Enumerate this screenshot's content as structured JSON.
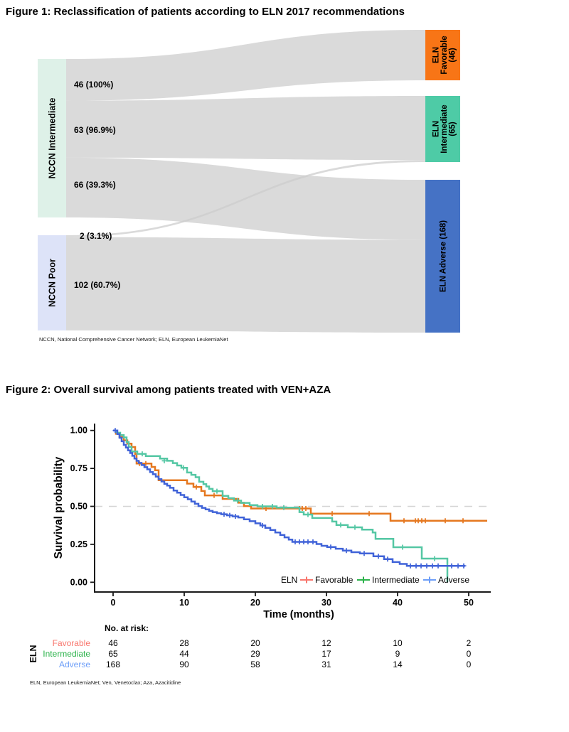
{
  "chart_data": [
    {
      "type": "sankey",
      "title": "Figure 1: Reclassification of patients according to ELN 2017 recommendations",
      "footnote": "NCCN, National Comprehensive Cancer Network; ELN, European LeukemiaNet",
      "flow_color": "#cccccc",
      "left_nodes": [
        {
          "label": "NCCN Intermediate",
          "total": 175,
          "color": "#def1e8"
        },
        {
          "label": "NCCN Poor",
          "total": 104,
          "color": "#dde3f8"
        }
      ],
      "right_nodes": [
        {
          "name": "ELN Favorable",
          "label_lines": [
            "ELN",
            "Favorable",
            "(46)"
          ],
          "total": 46,
          "color": "#f87516"
        },
        {
          "name": "ELN Intermediate",
          "label_lines": [
            "ELN",
            "Intermediate",
            "(65)"
          ],
          "total": 65,
          "color": "#4ecba6"
        },
        {
          "name": "ELN Adverse",
          "label_lines": [
            "ELN Adverse (168)"
          ],
          "total": 168,
          "color": "#4572c5"
        }
      ],
      "flows": [
        {
          "from": "NCCN Intermediate",
          "to": "ELN Favorable",
          "value": 46,
          "label": "46 (100%)"
        },
        {
          "from": "NCCN Intermediate",
          "to": "ELN Intermediate",
          "value": 63,
          "label": "63 (96.9%)"
        },
        {
          "from": "NCCN Intermediate",
          "to": "ELN Adverse",
          "value": 66,
          "label": "66 (39.3%)"
        },
        {
          "from": "NCCN Poor",
          "to": "ELN Intermediate",
          "value": 2,
          "label": "2 (3.1%)"
        },
        {
          "from": "NCCN Poor",
          "to": "ELN Adverse",
          "value": 102,
          "label": "102 (60.7%)"
        }
      ]
    },
    {
      "type": "line",
      "title": "Figure 2: Overall survival among patients treated with VEN+AZA",
      "footnote": "ELN, European LeukemiaNet; Ven, Venetoclax; Aza, Azacitidine",
      "xlabel": "Time (months)",
      "ylabel": "Survival probability",
      "xlim": [
        0,
        53
      ],
      "ylim": [
        0,
        1
      ],
      "x_ticks": [
        0,
        10,
        20,
        30,
        40,
        50
      ],
      "x_tick_labels": [
        "0",
        "10",
        "20",
        "30",
        "40",
        "50"
      ],
      "y_ticks": [
        1.0,
        0.75,
        0.5,
        0.25,
        0.0
      ],
      "y_tick_labels": [
        "1.00",
        "0.75",
        "0.50",
        "0.25",
        "0.00"
      ],
      "reference_line_y": 0.5,
      "reference_line_color": "#d4d4d4",
      "legend_title": "ELN",
      "series": [
        {
          "name": "Favorable",
          "line_color": "#e5771e",
          "legend_color": "#f8766d",
          "steps": [
            [
              0,
              1
            ],
            [
              0.4,
              0.978
            ],
            [
              0.9,
              0.957
            ],
            [
              1.5,
              0.935
            ],
            [
              2.0,
              0.913
            ],
            [
              2.6,
              0.891
            ],
            [
              3.1,
              0.845
            ],
            [
              3.3,
              0.782
            ],
            [
              5.4,
              0.76
            ],
            [
              5.9,
              0.738
            ],
            [
              6.4,
              0.672
            ],
            [
              10.4,
              0.65
            ],
            [
              11.3,
              0.628
            ],
            [
              12.4,
              0.601
            ],
            [
              12.9,
              0.572
            ],
            [
              15.4,
              0.549
            ],
            [
              17.6,
              0.524
            ],
            [
              18.4,
              0.502
            ],
            [
              19.4,
              0.486
            ],
            [
              27.8,
              0.452
            ],
            [
              39.0,
              0.405
            ],
            [
              52.6,
              0.405
            ]
          ],
          "censors": [
            [
              3.7,
              0.782
            ],
            [
              4.6,
              0.782
            ],
            [
              11.7,
              0.628
            ],
            [
              14.2,
              0.572
            ],
            [
              21.5,
              0.486
            ],
            [
              26.2,
              0.486
            ],
            [
              26.6,
              0.486
            ],
            [
              27.1,
              0.486
            ],
            [
              30.8,
              0.452
            ],
            [
              36.0,
              0.452
            ],
            [
              40.9,
              0.405
            ],
            [
              42.5,
              0.405
            ],
            [
              42.9,
              0.405
            ],
            [
              43.4,
              0.405
            ],
            [
              43.9,
              0.405
            ],
            [
              46.7,
              0.405
            ],
            [
              49.2,
              0.405
            ]
          ]
        },
        {
          "name": "Intermediate",
          "line_color": "#55c7a4",
          "legend_color": "#2db34c",
          "steps": [
            [
              0,
              1
            ],
            [
              0.5,
              0.985
            ],
            [
              1.0,
              0.969
            ],
            [
              1.5,
              0.954
            ],
            [
              1.9,
              0.923
            ],
            [
              2.2,
              0.892
            ],
            [
              2.6,
              0.862
            ],
            [
              3.4,
              0.846
            ],
            [
              4.6,
              0.831
            ],
            [
              6.6,
              0.815
            ],
            [
              7.6,
              0.8
            ],
            [
              8.4,
              0.785
            ],
            [
              9.0,
              0.769
            ],
            [
              9.6,
              0.754
            ],
            [
              10.4,
              0.723
            ],
            [
              11.0,
              0.708
            ],
            [
              11.6,
              0.692
            ],
            [
              12.1,
              0.662
            ],
            [
              12.7,
              0.646
            ],
            [
              13.1,
              0.631
            ],
            [
              13.5,
              0.615
            ],
            [
              14.0,
              0.6
            ],
            [
              15.4,
              0.569
            ],
            [
              16.2,
              0.554
            ],
            [
              17.0,
              0.538
            ],
            [
              18.0,
              0.523
            ],
            [
              19.2,
              0.508
            ],
            [
              20.3,
              0.5
            ],
            [
              23.0,
              0.492
            ],
            [
              26.2,
              0.462
            ],
            [
              26.8,
              0.446
            ],
            [
              28.0,
              0.423
            ],
            [
              30.8,
              0.4
            ],
            [
              31.4,
              0.377
            ],
            [
              33.0,
              0.362
            ],
            [
              35.0,
              0.347
            ],
            [
              36.5,
              0.328
            ],
            [
              36.9,
              0.286
            ],
            [
              39.4,
              0.231
            ],
            [
              43.4,
              0.156
            ],
            [
              47.0,
              0.0
            ]
          ],
          "censors": [
            [
              4.1,
              0.846
            ],
            [
              7.2,
              0.8
            ],
            [
              9.9,
              0.754
            ],
            [
              14.6,
              0.6
            ],
            [
              17.5,
              0.538
            ],
            [
              21.0,
              0.5
            ],
            [
              22.4,
              0.5
            ],
            [
              24.0,
              0.492
            ],
            [
              27.4,
              0.446
            ],
            [
              32.0,
              0.377
            ],
            [
              34.0,
              0.362
            ],
            [
              40.7,
              0.231
            ],
            [
              45.2,
              0.156
            ]
          ]
        },
        {
          "name": "Adverse",
          "line_color": "#4063d8",
          "legend_color": "#6d9ef8",
          "steps": [
            [
              0,
              1
            ],
            [
              0.6,
              0.976
            ],
            [
              0.9,
              0.952
            ],
            [
              1.2,
              0.929
            ],
            [
              1.5,
              0.905
            ],
            [
              1.8,
              0.887
            ],
            [
              2.1,
              0.869
            ],
            [
              2.4,
              0.851
            ],
            [
              2.7,
              0.833
            ],
            [
              3.0,
              0.815
            ],
            [
              3.3,
              0.8
            ],
            [
              3.6,
              0.786
            ],
            [
              4.0,
              0.772
            ],
            [
              4.4,
              0.758
            ],
            [
              4.8,
              0.744
            ],
            [
              5.2,
              0.726
            ],
            [
              5.6,
              0.712
            ],
            [
              6.0,
              0.696
            ],
            [
              6.4,
              0.679
            ],
            [
              6.8,
              0.664
            ],
            [
              7.2,
              0.649
            ],
            [
              7.6,
              0.637
            ],
            [
              8.0,
              0.622
            ],
            [
              8.5,
              0.604
            ],
            [
              9.0,
              0.59
            ],
            [
              9.5,
              0.575
            ],
            [
              10.0,
              0.56
            ],
            [
              10.5,
              0.547
            ],
            [
              11.0,
              0.532
            ],
            [
              11.5,
              0.517
            ],
            [
              12.0,
              0.502
            ],
            [
              12.5,
              0.49
            ],
            [
              13.0,
              0.48
            ],
            [
              13.5,
              0.47
            ],
            [
              14.0,
              0.462
            ],
            [
              14.6,
              0.455
            ],
            [
              15.2,
              0.448
            ],
            [
              16.0,
              0.441
            ],
            [
              16.8,
              0.434
            ],
            [
              17.6,
              0.427
            ],
            [
              18.4,
              0.415
            ],
            [
              19.2,
              0.402
            ],
            [
              20.0,
              0.388
            ],
            [
              20.7,
              0.374
            ],
            [
              21.4,
              0.358
            ],
            [
              22.1,
              0.344
            ],
            [
              22.8,
              0.328
            ],
            [
              23.5,
              0.312
            ],
            [
              24.1,
              0.296
            ],
            [
              24.7,
              0.281
            ],
            [
              25.2,
              0.266
            ],
            [
              28.6,
              0.252
            ],
            [
              29.3,
              0.24
            ],
            [
              30.1,
              0.232
            ],
            [
              31.3,
              0.221
            ],
            [
              32.3,
              0.209
            ],
            [
              33.5,
              0.198
            ],
            [
              34.7,
              0.19
            ],
            [
              36.6,
              0.171
            ],
            [
              38.1,
              0.152
            ],
            [
              39.3,
              0.133
            ],
            [
              40.3,
              0.121
            ],
            [
              41.3,
              0.108
            ],
            [
              49.5,
              0.108
            ]
          ],
          "censors": [
            [
              0.3,
              1
            ],
            [
              15.6,
              0.448
            ],
            [
              16.4,
              0.441
            ],
            [
              17.2,
              0.434
            ],
            [
              21.0,
              0.374
            ],
            [
              25.6,
              0.266
            ],
            [
              26.2,
              0.266
            ],
            [
              26.8,
              0.266
            ],
            [
              27.4,
              0.266
            ],
            [
              28.1,
              0.266
            ],
            [
              30.6,
              0.232
            ],
            [
              32.8,
              0.209
            ],
            [
              35.3,
              0.19
            ],
            [
              37.3,
              0.171
            ],
            [
              38.6,
              0.152
            ],
            [
              41.8,
              0.108
            ],
            [
              42.6,
              0.108
            ],
            [
              43.3,
              0.108
            ],
            [
              44.1,
              0.108
            ],
            [
              44.9,
              0.108
            ],
            [
              45.7,
              0.108
            ],
            [
              47.6,
              0.108
            ],
            [
              48.5,
              0.108
            ],
            [
              49.3,
              0.108
            ]
          ]
        }
      ],
      "risk_table": {
        "header": "No. at risk:",
        "group_label": "ELN",
        "times": [
          0,
          10,
          20,
          30,
          40,
          50
        ],
        "rows": [
          {
            "name": "Favorable",
            "color": "#f8766d",
            "values": [
              46,
              28,
              20,
              12,
              10,
              2
            ]
          },
          {
            "name": "Intermediate",
            "color": "#2db34c",
            "values": [
              65,
              44,
              29,
              17,
              9,
              0
            ]
          },
          {
            "name": "Adverse",
            "color": "#6d9ef8",
            "values": [
              168,
              90,
              58,
              31,
              14,
              0
            ]
          }
        ]
      }
    }
  ]
}
